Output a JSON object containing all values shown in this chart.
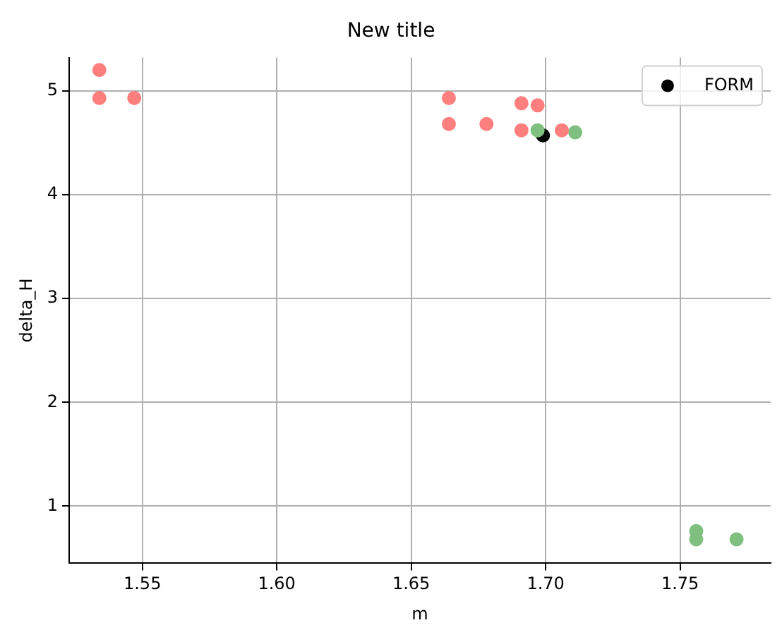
{
  "chart_data": {
    "type": "scatter",
    "title": "New title",
    "xlabel": "m",
    "ylabel": "delta_H",
    "xlim": [
      1.5228,
      1.7837
    ],
    "xticks": [
      1.55,
      {
        "value": 1.6,
        "label": "1.60"
      },
      1.65,
      {
        "value": 1.7,
        "label": "1.70"
      },
      1.75
    ],
    "ylim": [
      0.45,
      5.32
    ],
    "yticks": [
      1,
      2,
      3,
      4,
      5
    ],
    "grid": true,
    "legend": "top right",
    "marker": "circle",
    "series": [
      {
        "color": "#ff7f7f",
        "x": [
          1.534,
          1.534,
          1.547,
          1.664,
          1.664,
          1.678,
          1.691,
          1.697,
          1.691,
          1.706
        ],
        "values": [
          5.2,
          4.93,
          4.93,
          4.93,
          4.68,
          4.68,
          4.88,
          4.86,
          4.62,
          4.62
        ]
      },
      {
        "color": "#7fbf7f",
        "x": [
          1.697,
          1.711,
          1.756,
          1.756,
          1.771
        ],
        "values": [
          4.62,
          4.6,
          0.76,
          0.68,
          0.68
        ]
      },
      {
        "name": "FORM",
        "color": "#000000",
        "x": [
          1.699
        ],
        "values": [
          4.57
        ]
      }
    ]
  }
}
